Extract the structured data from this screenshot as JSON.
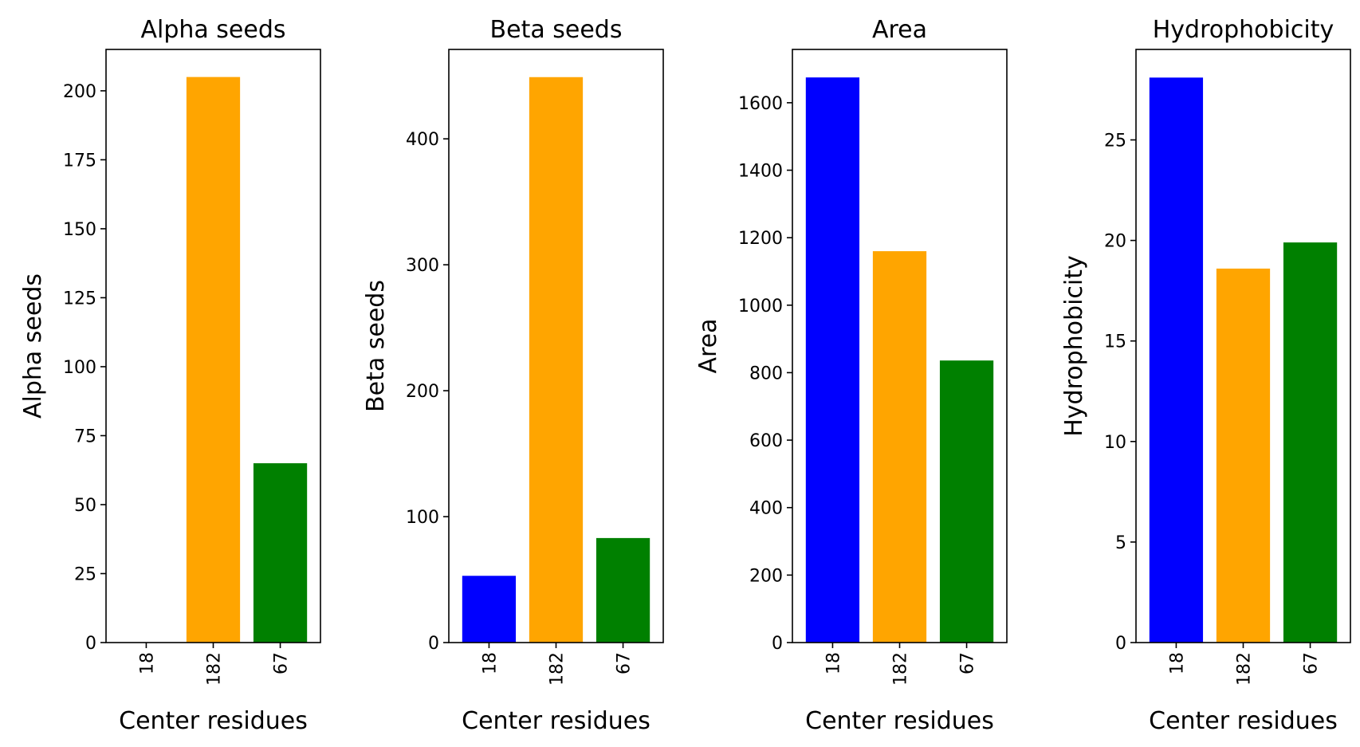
{
  "colors": {
    "bar_colors": [
      "#0000ff",
      "#ffa500",
      "#008000"
    ],
    "axis": "#000000",
    "background": "#ffffff"
  },
  "chart_data": [
    {
      "type": "bar",
      "title": "Alpha seeds",
      "xlabel": "Center residues",
      "ylabel": "Alpha seeds",
      "categories": [
        "18",
        "182",
        "67"
      ],
      "values": [
        0,
        205,
        65
      ],
      "ylim": [
        0,
        215
      ],
      "yticks": [
        0,
        25,
        50,
        75,
        100,
        125,
        150,
        175,
        200
      ],
      "grid": false
    },
    {
      "type": "bar",
      "title": "Beta seeds",
      "xlabel": "Center residues",
      "ylabel": "Beta seeds",
      "categories": [
        "18",
        "182",
        "67"
      ],
      "values": [
        53,
        449,
        83
      ],
      "ylim": [
        0,
        471
      ],
      "yticks": [
        0,
        100,
        200,
        300,
        400
      ],
      "grid": false
    },
    {
      "type": "bar",
      "title": "Area",
      "xlabel": "Center residues",
      "ylabel": "Area",
      "categories": [
        "18",
        "182",
        "67"
      ],
      "values": [
        1675,
        1160,
        836
      ],
      "ylim": [
        0,
        1758
      ],
      "yticks": [
        0,
        200,
        400,
        600,
        800,
        1000,
        1200,
        1400,
        1600
      ],
      "grid": false
    },
    {
      "type": "bar",
      "title": "Hydrophobicity",
      "xlabel": "Center residues",
      "ylabel": "Hydrophobicity",
      "categories": [
        "18",
        "182",
        "67"
      ],
      "values": [
        28.1,
        18.6,
        19.9
      ],
      "ylim": [
        0,
        29.5
      ],
      "yticks": [
        0,
        5,
        10,
        15,
        20,
        25
      ],
      "grid": false
    }
  ]
}
